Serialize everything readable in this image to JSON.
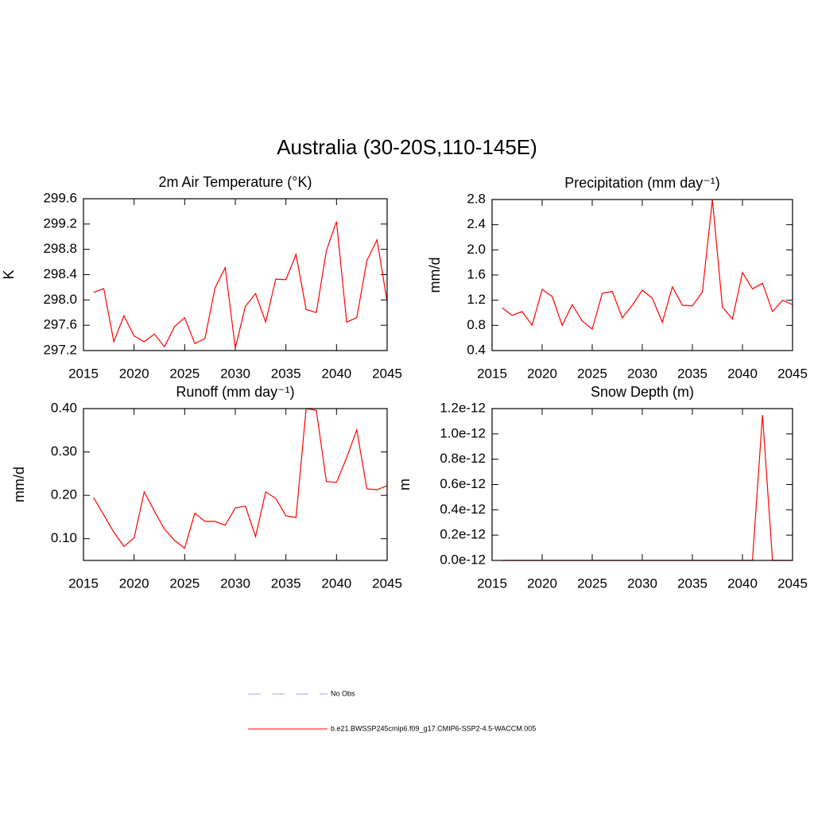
{
  "title": "Australia (30-20S,110-145E)",
  "legend": [
    {
      "name": "No Obs",
      "color": "#a8a8dc",
      "style": "dashed"
    },
    {
      "name": "b.e21.BWSSP245cmip6.f09_g17.CMIP6-SSP2-4.5-WACCM.005",
      "color": "#ff0000",
      "style": "solid"
    }
  ],
  "chart_data": [
    {
      "type": "line",
      "title": "2m Air Temperature (°K)",
      "ylabel": "K",
      "color": "#ff0000",
      "x": [
        2016,
        2017,
        2018,
        2019,
        2020,
        2021,
        2022,
        2023,
        2024,
        2025,
        2026,
        2027,
        2028,
        2029,
        2030,
        2031,
        2032,
        2033,
        2034,
        2035,
        2036,
        2037,
        2038,
        2039,
        2040,
        2041,
        2042,
        2043,
        2044,
        2045
      ],
      "values": [
        298.12,
        298.18,
        297.34,
        297.75,
        297.43,
        297.34,
        297.46,
        297.26,
        297.58,
        297.72,
        297.31,
        297.39,
        298.19,
        298.51,
        297.24,
        297.9,
        298.1,
        297.65,
        298.33,
        298.32,
        298.72,
        297.85,
        297.8,
        298.78,
        299.24,
        297.65,
        297.72,
        298.62,
        298.95,
        297.97
      ],
      "xlim": [
        2015,
        2045
      ],
      "xticks": [
        2015,
        2020,
        2025,
        2030,
        2035,
        2040,
        2045
      ],
      "ylim": [
        297.2,
        299.6
      ],
      "yticks": [
        {
          "value": 297.2,
          "label": "297.2"
        },
        {
          "value": 297.6,
          "label": "297.6"
        },
        {
          "value": 298.0,
          "label": "298.0"
        },
        {
          "value": 298.4,
          "label": "298.4"
        },
        {
          "value": 298.8,
          "label": "298.8"
        },
        {
          "value": 299.2,
          "label": "299.2"
        },
        {
          "value": 299.6,
          "label": "299.6"
        }
      ]
    },
    {
      "type": "line",
      "title": "Precipitation (mm day⁻¹)",
      "ylabel": "mm/d",
      "color": "#ff0000",
      "x": [
        2016,
        2017,
        2018,
        2019,
        2020,
        2021,
        2022,
        2023,
        2024,
        2025,
        2026,
        2027,
        2028,
        2029,
        2030,
        2031,
        2032,
        2033,
        2034,
        2035,
        2036,
        2037,
        2038,
        2039,
        2040,
        2041,
        2042,
        2043,
        2044,
        2045
      ],
      "values": [
        1.08,
        0.96,
        1.02,
        0.8,
        1.37,
        1.26,
        0.8,
        1.13,
        0.87,
        0.74,
        1.31,
        1.34,
        0.92,
        1.12,
        1.36,
        1.23,
        0.85,
        1.41,
        1.12,
        1.11,
        1.33,
        2.8,
        1.09,
        0.9,
        1.64,
        1.38,
        1.47,
        1.02,
        1.2,
        1.13
      ],
      "xlim": [
        2015,
        2045
      ],
      "xticks": [
        2015,
        2020,
        2025,
        2030,
        2035,
        2040,
        2045
      ],
      "ylim": [
        0.4,
        2.8
      ],
      "yticks": [
        0.4,
        0.8,
        {
          "value": 1.2,
          "label": "1.2"
        },
        1.6,
        {
          "value": 2.0,
          "label": "2.0"
        },
        2.4,
        2.8
      ]
    },
    {
      "type": "line",
      "title": "Runoff (mm day⁻¹)",
      "ylabel": "mm/d",
      "color": "#ff0000",
      "x": [
        2016,
        2017,
        2018,
        2019,
        2020,
        2021,
        2022,
        2023,
        2024,
        2025,
        2026,
        2027,
        2028,
        2029,
        2030,
        2031,
        2032,
        2033,
        2034,
        2035,
        2036,
        2037,
        2038,
        2039,
        2040,
        2041,
        2042,
        2043,
        2044,
        2045
      ],
      "values": [
        0.195,
        0.155,
        0.115,
        0.082,
        0.102,
        0.208,
        0.164,
        0.122,
        0.096,
        0.078,
        0.159,
        0.14,
        0.14,
        0.131,
        0.171,
        0.175,
        0.105,
        0.208,
        0.193,
        0.153,
        0.149,
        0.4,
        0.396,
        0.232,
        0.23,
        0.287,
        0.351,
        0.215,
        0.213,
        0.222
      ],
      "xlim": [
        2015,
        2045
      ],
      "xticks": [
        2015,
        2020,
        2025,
        2030,
        2035,
        2040,
        2045
      ],
      "ylim": [
        0.05,
        0.4
      ],
      "yticks": [
        {
          "value": 0.1,
          "label": "0.10"
        },
        {
          "value": 0.2,
          "label": "0.20"
        },
        {
          "value": 0.3,
          "label": "0.30"
        },
        {
          "value": 0.4,
          "label": "0.40"
        }
      ]
    },
    {
      "type": "line",
      "title": "Snow Depth (m)",
      "ylabel": "m",
      "color": "#ff0000",
      "x": [
        2016,
        2017,
        2018,
        2019,
        2020,
        2021,
        2022,
        2023,
        2024,
        2025,
        2026,
        2027,
        2028,
        2029,
        2030,
        2031,
        2032,
        2033,
        2034,
        2035,
        2036,
        2037,
        2038,
        2039,
        2040,
        2041,
        2042,
        2043,
        2044,
        2045
      ],
      "values": [
        0,
        0,
        0,
        0,
        0,
        0,
        0,
        0,
        0,
        0,
        0,
        0,
        0,
        0,
        0,
        0,
        0,
        0,
        0,
        0,
        0,
        0,
        0,
        0,
        0,
        0,
        1.15e-12,
        0,
        0,
        0
      ],
      "xlim": [
        2015,
        2045
      ],
      "xticks": [
        2015,
        2020,
        2025,
        2030,
        2035,
        2040,
        2045
      ],
      "ylim": [
        0,
        1.2e-12
      ],
      "yticks": [
        {
          "value": 0,
          "label": "0.0e-12"
        },
        {
          "value": 2e-13,
          "label": "0.2e-12"
        },
        {
          "value": 4e-13,
          "label": "0.4e-12"
        },
        {
          "value": 6e-13,
          "label": "0.6e-12"
        },
        {
          "value": 8e-13,
          "label": "0.8e-12"
        },
        {
          "value": 1e-12,
          "label": "1.0e-12"
        },
        {
          "value": 1.2e-12,
          "label": "1.2e-12"
        }
      ]
    }
  ]
}
